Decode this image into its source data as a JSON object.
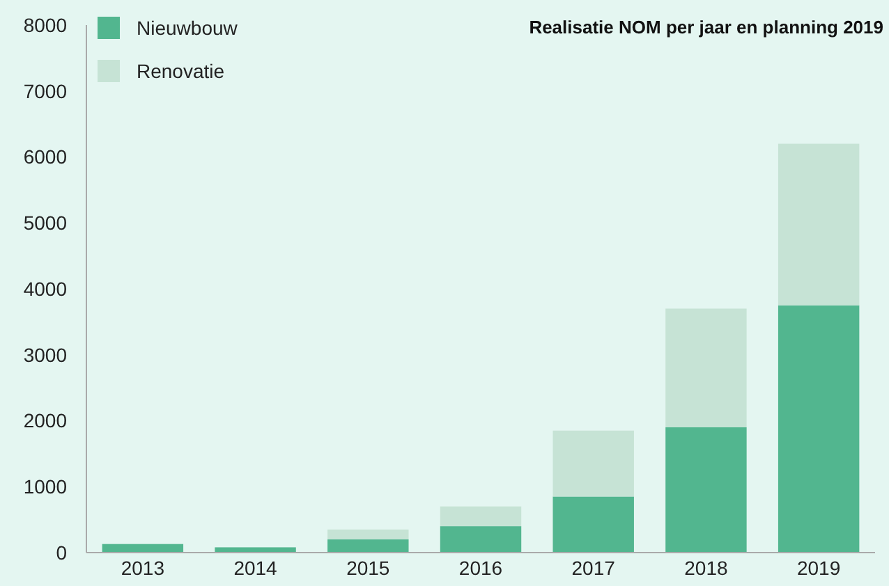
{
  "chart_data": {
    "type": "bar",
    "title": "Realisatie NOM per jaar en planning 2019",
    "categories": [
      "2013",
      "2014",
      "2015",
      "2016",
      "2017",
      "2018",
      "2019"
    ],
    "series": [
      {
        "name": "Nieuwbouw",
        "color": "#52b68f",
        "values": [
          130,
          80,
          200,
          400,
          850,
          1900,
          3750
        ]
      },
      {
        "name": "Renovatie",
        "color": "#c6e3d5",
        "values": [
          0,
          0,
          150,
          300,
          1000,
          1800,
          2450
        ]
      }
    ],
    "stacked": true,
    "ylim": [
      0,
      8000
    ],
    "yticks": [
      0,
      1000,
      2000,
      3000,
      4000,
      5000,
      6000,
      7000,
      8000
    ],
    "grid": false,
    "legend": "top left"
  }
}
